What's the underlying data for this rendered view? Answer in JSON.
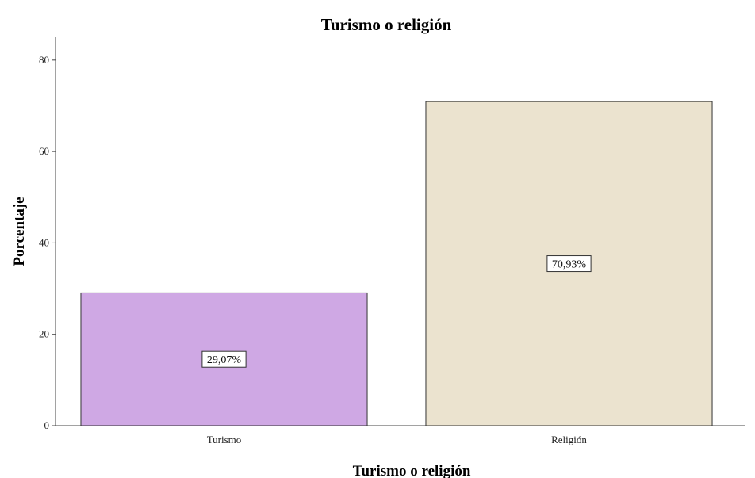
{
  "chart_data": {
    "type": "bar",
    "title": "Turismo o religión",
    "xlabel": "Turismo o religión",
    "ylabel": "Porcentaje",
    "categories": [
      "Turismo",
      "Religión"
    ],
    "values": [
      29.07,
      70.93
    ],
    "data_labels": [
      "29,07%",
      "70,93%"
    ],
    "colors": [
      "#cfa8e4",
      "#ebe3cf"
    ],
    "ylim": [
      0,
      85
    ],
    "yticks": [
      0,
      20,
      40,
      60,
      80
    ],
    "grid": false,
    "legend": "none"
  }
}
